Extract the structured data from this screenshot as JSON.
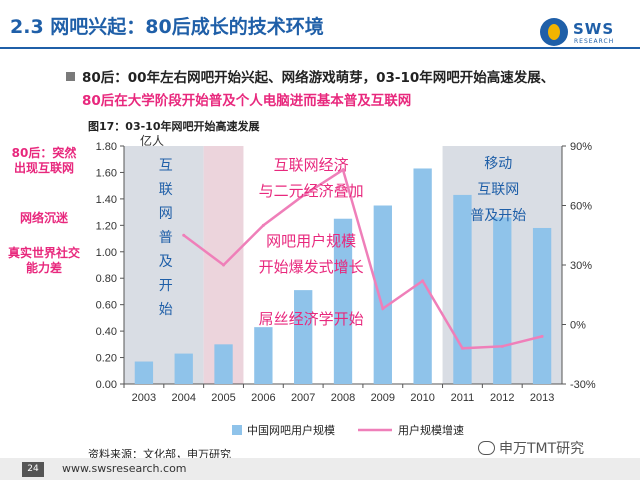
{
  "header": {
    "title": "2.3 网吧兴起：80后成长的技术环境",
    "logo_text": "SWS",
    "logo_sub": "RESEARCH"
  },
  "bullet": {
    "line1": "80后：00年左右网吧开始兴起、网络游戏萌芽，03-10年网吧开始高速发展、",
    "line2": "80后在大学阶段开始普及个人电脑进而基本普及互联网"
  },
  "side_notes": [
    "80后：突然出现互联网",
    "网络沉迷",
    "真实世界社交能力差"
  ],
  "colors": {
    "accent": "#1f5fa8",
    "pink": "#e8287d",
    "bar": "#8fc3ea",
    "line": "#ef7fb9"
  },
  "chart_data": {
    "type": "bar",
    "title": "图17：03-10年网吧开始高速发展",
    "y_unit": "亿人",
    "categories": [
      "2003",
      "2004",
      "2005",
      "2006",
      "2007",
      "2008",
      "2009",
      "2010",
      "2011",
      "2012",
      "2013"
    ],
    "ylim": [
      0,
      1.8
    ],
    "y_ticks": [
      "0.00",
      "0.20",
      "0.40",
      "0.60",
      "0.80",
      "1.00",
      "1.20",
      "1.40",
      "1.60",
      "1.80"
    ],
    "y2lim": [
      -0.3,
      0.9
    ],
    "y2_ticks": [
      "-30%",
      "0%",
      "30%",
      "60%",
      "90%"
    ],
    "series": [
      {
        "name": "中国网吧用户规模",
        "type": "bar",
        "axis": "left",
        "values": [
          0.17,
          0.23,
          0.3,
          0.43,
          0.71,
          1.25,
          1.35,
          1.63,
          1.43,
          1.26,
          1.18
        ]
      },
      {
        "name": "用户规模增速",
        "type": "line",
        "axis": "right",
        "values": [
          null,
          0.45,
          0.3,
          0.5,
          0.65,
          0.78,
          0.08,
          0.22,
          -0.12,
          -0.11,
          -0.06
        ]
      }
    ],
    "annotations": [
      {
        "text": "互联网普及开始",
        "color": "#1f5fa8"
      },
      {
        "text": "互联网经济与二元经济叠加",
        "color": "#e8287d"
      },
      {
        "text": "网吧用户规模开始爆发式增长",
        "color": "#e8287d"
      },
      {
        "text": "屌丝经济学开始",
        "color": "#e8287d"
      },
      {
        "text": "移动互联网普及开始",
        "color": "#1f5fa8"
      }
    ],
    "legend_position": "bottom"
  },
  "source": "资料来源：文化部，申万研究",
  "footer": {
    "page": "24",
    "url": "www.swsresearch.com"
  },
  "watermark": "申万TMT研究"
}
